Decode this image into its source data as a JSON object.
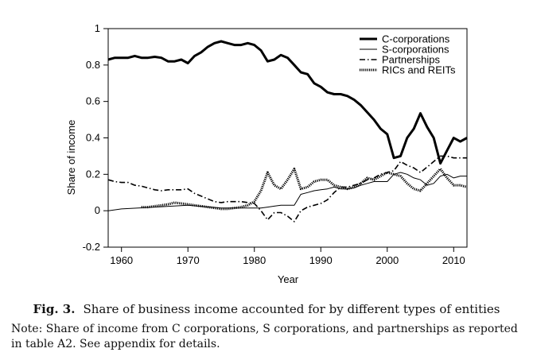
{
  "chart_data": {
    "type": "line",
    "title": "",
    "xlabel": "Year",
    "ylabel": "Share of income",
    "xlim": [
      1958,
      2012
    ],
    "ylim": [
      -0.2,
      1
    ],
    "xticks": [
      1960,
      1970,
      1980,
      1990,
      2000,
      2010
    ],
    "yticks": [
      -0.2,
      0,
      0.2,
      0.4,
      0.6,
      0.8,
      1
    ],
    "ytick_labels": [
      "-0.2",
      "0",
      "0.2",
      "0.4",
      "0.6",
      "0.8",
      "1"
    ],
    "legend_placement": "top-right",
    "grid": false,
    "series": [
      {
        "name": "C-corporations",
        "style": "solid-thick",
        "x": [
          1958,
          1959,
          1960,
          1961,
          1962,
          1963,
          1964,
          1965,
          1966,
          1967,
          1968,
          1969,
          1970,
          1971,
          1972,
          1973,
          1974,
          1975,
          1976,
          1977,
          1978,
          1979,
          1980,
          1981,
          1982,
          1983,
          1984,
          1985,
          1986,
          1987,
          1988,
          1989,
          1990,
          1991,
          1992,
          1993,
          1994,
          1995,
          1996,
          1997,
          1998,
          1999,
          2000,
          2001,
          2002,
          2003,
          2004,
          2005,
          2006,
          2007,
          2008,
          2009,
          2010,
          2011,
          2012
        ],
        "values": [
          0.83,
          0.84,
          0.84,
          0.84,
          0.85,
          0.84,
          0.84,
          0.845,
          0.84,
          0.82,
          0.82,
          0.83,
          0.81,
          0.85,
          0.87,
          0.9,
          0.92,
          0.93,
          0.92,
          0.91,
          0.91,
          0.92,
          0.91,
          0.88,
          0.82,
          0.83,
          0.855,
          0.84,
          0.8,
          0.76,
          0.75,
          0.7,
          0.68,
          0.65,
          0.64,
          0.64,
          0.63,
          0.61,
          0.58,
          0.54,
          0.5,
          0.45,
          0.42,
          0.29,
          0.3,
          0.4,
          0.45,
          0.535,
          0.46,
          0.4,
          0.26,
          0.33,
          0.4,
          0.38,
          0.4
        ]
      },
      {
        "name": "S-corporations",
        "style": "solid-thin",
        "x": [
          1958,
          1960,
          1965,
          1970,
          1975,
          1980,
          1981,
          1982,
          1983,
          1984,
          1985,
          1986,
          1987,
          1988,
          1989,
          1990,
          1991,
          1992,
          1993,
          1994,
          1995,
          1996,
          1997,
          1998,
          1999,
          2000,
          2001,
          2002,
          2003,
          2004,
          2005,
          2006,
          2007,
          2008,
          2009,
          2010,
          2011,
          2012
        ],
        "values": [
          0.0,
          0.01,
          0.02,
          0.03,
          0.015,
          0.015,
          0.015,
          0.02,
          0.025,
          0.03,
          0.03,
          0.03,
          0.09,
          0.1,
          0.11,
          0.115,
          0.12,
          0.13,
          0.12,
          0.12,
          0.125,
          0.14,
          0.15,
          0.16,
          0.16,
          0.16,
          0.2,
          0.21,
          0.2,
          0.18,
          0.17,
          0.14,
          0.15,
          0.19,
          0.2,
          0.18,
          0.19,
          0.19
        ]
      },
      {
        "name": "Partnerships",
        "style": "dash-dot",
        "x": [
          1958,
          1959,
          1960,
          1961,
          1962,
          1963,
          1964,
          1965,
          1966,
          1967,
          1968,
          1969,
          1970,
          1971,
          1972,
          1973,
          1974,
          1975,
          1976,
          1977,
          1978,
          1979,
          1980,
          1981,
          1982,
          1983,
          1984,
          1985,
          1986,
          1987,
          1988,
          1989,
          1990,
          1991,
          1992,
          1993,
          1994,
          1995,
          1996,
          1997,
          1998,
          1999,
          2000,
          2001,
          2002,
          2003,
          2004,
          2005,
          2006,
          2007,
          2008,
          2009,
          2010,
          2011,
          2012
        ],
        "values": [
          0.17,
          0.16,
          0.155,
          0.155,
          0.14,
          0.135,
          0.125,
          0.115,
          0.11,
          0.115,
          0.115,
          0.115,
          0.12,
          0.095,
          0.08,
          0.065,
          0.05,
          0.045,
          0.05,
          0.05,
          0.05,
          0.045,
          0.04,
          0.0,
          -0.05,
          -0.01,
          -0.01,
          -0.03,
          -0.06,
          0.0,
          0.02,
          0.03,
          0.04,
          0.06,
          0.1,
          0.13,
          0.13,
          0.14,
          0.15,
          0.17,
          0.18,
          0.2,
          0.21,
          0.22,
          0.27,
          0.25,
          0.235,
          0.21,
          0.24,
          0.27,
          0.3,
          0.3,
          0.29,
          0.29,
          0.29
        ]
      },
      {
        "name": "RICs and REITs",
        "style": "dotted",
        "x": [
          1963,
          1964,
          1965,
          1966,
          1967,
          1968,
          1969,
          1970,
          1971,
          1972,
          1973,
          1974,
          1975,
          1976,
          1977,
          1978,
          1979,
          1980,
          1981,
          1982,
          1983,
          1984,
          1985,
          1986,
          1987,
          1988,
          1989,
          1990,
          1991,
          1992,
          1993,
          1994,
          1995,
          1996,
          1997,
          1998,
          1999,
          2000,
          2001,
          2002,
          2003,
          2004,
          2005,
          2006,
          2007,
          2008,
          2009,
          2010,
          2011,
          2012
        ],
        "values": [
          0.02,
          0.02,
          0.025,
          0.03,
          0.035,
          0.045,
          0.04,
          0.035,
          0.03,
          0.025,
          0.02,
          0.015,
          0.01,
          0.01,
          0.015,
          0.02,
          0.03,
          0.05,
          0.11,
          0.21,
          0.14,
          0.12,
          0.17,
          0.23,
          0.12,
          0.13,
          0.16,
          0.17,
          0.17,
          0.14,
          0.13,
          0.12,
          0.13,
          0.15,
          0.18,
          0.17,
          0.19,
          0.21,
          0.2,
          0.19,
          0.15,
          0.12,
          0.11,
          0.15,
          0.19,
          0.23,
          0.18,
          0.14,
          0.14,
          0.13
        ]
      }
    ]
  },
  "caption": {
    "number": "Fig. 3.",
    "text": "Share of business income accounted for by different types of entities"
  },
  "note": "Note: Share of income from C corporations, S corporations, and partnerships as reported in table A2. See appendix for details."
}
